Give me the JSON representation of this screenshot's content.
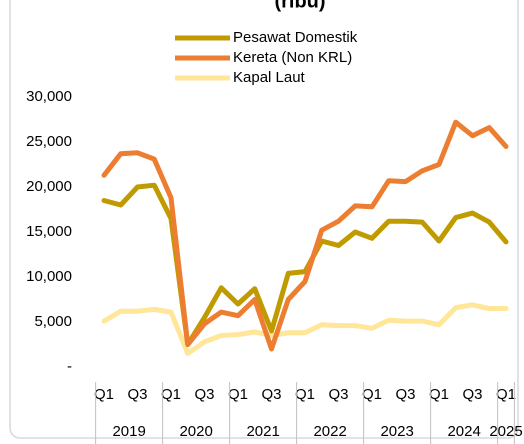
{
  "chart_data": {
    "type": "line",
    "title": "(ribu)",
    "categories": [
      "Q1",
      null,
      "Q3",
      null,
      "Q1",
      null,
      "Q3",
      null,
      "Q1",
      null,
      "Q3",
      null,
      "Q1",
      null,
      "Q3",
      null,
      "Q1",
      null,
      "Q3",
      null,
      "Q1",
      null,
      "Q3",
      null,
      "Q1"
    ],
    "years": [
      "2019",
      "2020",
      "2021",
      "2022",
      "2023",
      "2024",
      "2025"
    ],
    "series": [
      {
        "name": "Pesawat Domestik",
        "color": "#bf9b00",
        "values": [
          18500,
          18000,
          20000,
          20200,
          16500,
          2500,
          5500,
          8800,
          7000,
          8700,
          4000,
          10400,
          10600,
          14000,
          13500,
          15000,
          14300,
          16200,
          16200,
          16100,
          14000,
          16600,
          17100,
          16100,
          13900
        ]
      },
      {
        "name": "Kereta (Non KRL)",
        "color": "#ed7d31",
        "values": [
          21300,
          23700,
          23800,
          23100,
          18800,
          2500,
          4800,
          6100,
          5700,
          7500,
          2000,
          7500,
          9500,
          15200,
          16200,
          17900,
          17800,
          20700,
          20600,
          21800,
          22500,
          27200,
          25700,
          26600,
          24500
        ]
      },
      {
        "name": "Kapal Laut",
        "color": "#ffe699",
        "values": [
          5100,
          6200,
          6200,
          6400,
          6100,
          1500,
          2800,
          3500,
          3600,
          3900,
          3500,
          3800,
          3800,
          4700,
          4600,
          4600,
          4300,
          5200,
          5100,
          5100,
          4700,
          6600,
          6900,
          6500,
          6500
        ]
      }
    ],
    "ylim": [
      0,
      30000
    ],
    "yticks": [
      {
        "value": 0,
        "label": "-"
      },
      {
        "value": 5000,
        "label": "5,000"
      },
      {
        "value": 10000,
        "label": "10,000"
      },
      {
        "value": 15000,
        "label": "15,000"
      },
      {
        "value": 20000,
        "label": "20,000"
      },
      {
        "value": 25000,
        "label": "25,000"
      },
      {
        "value": 30000,
        "label": "30,000"
      }
    ],
    "legend": "top"
  }
}
